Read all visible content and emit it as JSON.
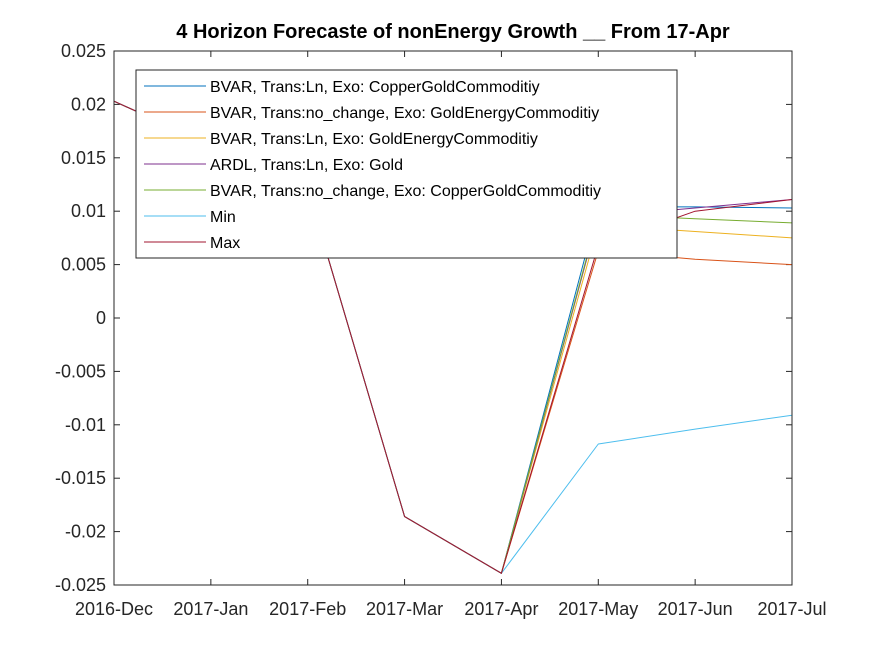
{
  "chart_data": {
    "type": "line",
    "title": "4 Horizon Forecaste of nonEnergy Growth __ From 17-Apr",
    "xlabel": "",
    "ylabel": "",
    "x": [
      "2016-Dec",
      "2017-Jan",
      "2017-Feb",
      "2017-Mar",
      "2017-Apr",
      "2017-May",
      "2017-Jun",
      "2017-Jul"
    ],
    "ylim": [
      -0.025,
      0.025
    ],
    "yticks": [
      "-0.025",
      "-0.02",
      "-0.015",
      "-0.01",
      "-0.005",
      "0",
      "0.005",
      "0.01",
      "0.015",
      "0.02",
      "0.025"
    ],
    "grid": false,
    "legend_position": "top-left",
    "series": [
      {
        "name": "BVAR, Trans:Ln, Exo: CopperGoldCommoditiy",
        "color": "#0072BD",
        "values": [
          0.0203,
          0.0162,
          0.0121,
          -0.0186,
          -0.0239,
          0.0104,
          0.0104,
          0.0103
        ]
      },
      {
        "name": "BVAR, Trans:no_change, Exo: GoldEnergyCommoditiy",
        "color": "#D95319",
        "values": [
          0.0203,
          0.0162,
          0.0121,
          -0.0186,
          -0.0239,
          0.0063,
          0.0055,
          0.005
        ]
      },
      {
        "name": "BVAR, Trans:Ln, Exo: GoldEnergyCommoditiy",
        "color": "#EDB120",
        "values": [
          0.0203,
          0.0162,
          0.0121,
          -0.0186,
          -0.0239,
          0.0087,
          0.0081,
          0.0075
        ]
      },
      {
        "name": "ARDL, Trans:Ln, Exo: Gold",
        "color": "#7E2F8E",
        "values": [
          0.0203,
          0.0162,
          0.0121,
          -0.0186,
          -0.0239,
          0.0095,
          0.0103,
          0.0111
        ]
      },
      {
        "name": "BVAR, Trans:no_change, Exo: CopperGoldCommoditiy",
        "color": "#77AC30",
        "values": [
          0.0203,
          0.0162,
          0.0121,
          -0.0186,
          -0.0239,
          0.0097,
          0.0093,
          0.0089
        ]
      },
      {
        "name": "Min",
        "color": "#4DBEEE",
        "values": [
          0.0203,
          0.0162,
          0.0121,
          -0.0186,
          -0.0239,
          -0.0118,
          -0.0104,
          -0.0091
        ]
      },
      {
        "name": "Max",
        "color": "#A2142F",
        "values": [
          0.0203,
          0.0162,
          0.0121,
          -0.0186,
          -0.0239,
          0.0068,
          0.01,
          0.0111
        ]
      }
    ]
  }
}
